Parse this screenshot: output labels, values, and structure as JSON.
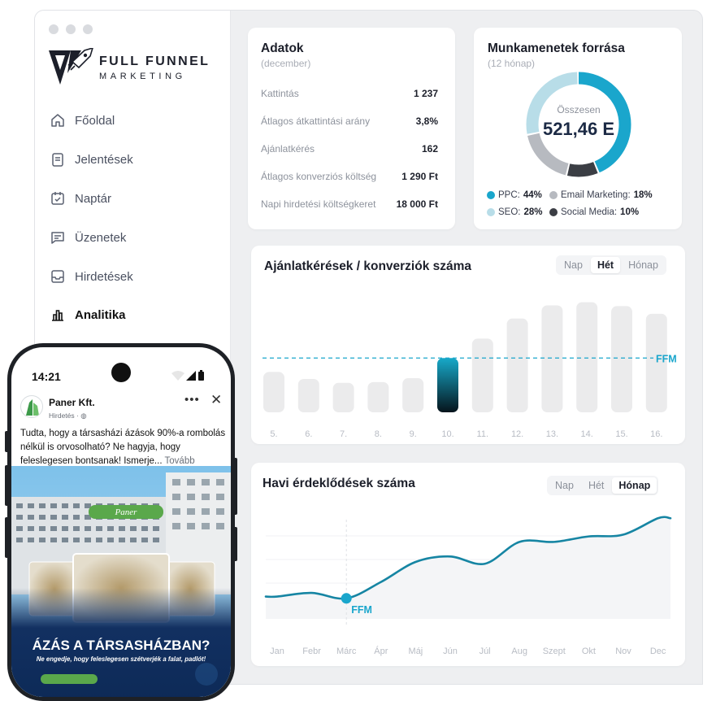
{
  "brand": {
    "line1": "FULL FUNNEL",
    "line2": "MARKETING"
  },
  "nav": [
    {
      "label": "Főoldal",
      "icon": "home-icon"
    },
    {
      "label": "Jelentések",
      "icon": "clipboard-icon"
    },
    {
      "label": "Naptár",
      "icon": "calendar-icon"
    },
    {
      "label": "Üzenetek",
      "icon": "message-icon"
    },
    {
      "label": "Hirdetések",
      "icon": "inbox-icon"
    },
    {
      "label": "Analitika",
      "icon": "bar-chart-icon",
      "active": true
    }
  ],
  "stats": {
    "title": "Adatok",
    "period": "(december)",
    "rows": [
      {
        "label": "Kattintás",
        "value": "1 237"
      },
      {
        "label": "Átlagos átkattintási arány",
        "value": "3,8%"
      },
      {
        "label": "Ajánlatkérés",
        "value": "162"
      },
      {
        "label": "Átlagos konverziós költség",
        "value": "1 290 Ft"
      },
      {
        "label": "Napi hirdetési költségkeret",
        "value": "18 000 Ft"
      }
    ]
  },
  "sessions": {
    "title": "Munkamenetek forrása",
    "period": "(12 hónap)",
    "center_label": "Összesen",
    "center_value": "521,46 E",
    "legend": [
      {
        "name": "PPC:",
        "value": "44%",
        "color": "#1aa6cc"
      },
      {
        "name": "Email Marketing:",
        "value": "18%",
        "color": "#b7bac0"
      },
      {
        "name": "SEO:",
        "value": "28%",
        "color": "#b8dde8"
      },
      {
        "name": "Social Media:",
        "value": "10%",
        "color": "#3b3e44"
      }
    ]
  },
  "conversions": {
    "title": "Ajánlatkérések / konverziók száma",
    "tabs": [
      "Nap",
      "Hét",
      "Hónap"
    ],
    "active_tab": "Hét",
    "ref_label": "FFM",
    "colors": {
      "bar": "#ebebec",
      "highlight_top": "#17a9c9",
      "highlight_bottom": "#06141c",
      "ref": "#1aa6cc"
    }
  },
  "interest": {
    "title": "Havi érdeklődések száma",
    "tabs": [
      "Nap",
      "Hét",
      "Hónap"
    ],
    "active_tab": "Hónap",
    "marker_label": "FFM",
    "colors": {
      "line": "#1685a3",
      "marker": "#1aa6cc"
    }
  },
  "chart_data": [
    {
      "type": "bar",
      "categories": [
        "5.",
        "6.",
        "7.",
        "8.",
        "9.",
        "10.",
        "11.",
        "12.",
        "13.",
        "14.",
        "15.",
        "16."
      ],
      "values": [
        52,
        43,
        38,
        39,
        44,
        70,
        95,
        121,
        138,
        142,
        137,
        127
      ],
      "highlight_index": 5,
      "reference_line": 70,
      "ylim": [
        0,
        150
      ],
      "title": "Ajánlatkérések / konverziók száma",
      "xlabel": "",
      "ylabel": "",
      "grid": false
    },
    {
      "type": "line",
      "x": [
        "Jan",
        "Febr",
        "Márc",
        "Ápr",
        "Máj",
        "Jún",
        "Júl",
        "Aug",
        "Szept",
        "Okt",
        "Nov",
        "Dec"
      ],
      "values": [
        12,
        16,
        10,
        28,
        50,
        56,
        48,
        72,
        72,
        78,
        80,
        98
      ],
      "marker_index": 2,
      "ylim": [
        0,
        100
      ],
      "title": "Havi érdeklődések száma",
      "xlabel": "",
      "ylabel": "",
      "grid": true
    }
  ],
  "phone": {
    "time": "14:21",
    "page_name": "Paner Kft.",
    "meta": "Hirdetés",
    "text": "Tudta, hogy a társasházi ázások 90%-a rombolás nélkül is orvosolható? Ne hagyja, hogy feleslegesen bontsanak! Ismerje...",
    "more": "Tovább",
    "ad_logo": "Paner",
    "headline": "ÁZÁS A TÁRSASHÁZBAN?",
    "subline": "Ne engedje, hogy feleslegesen szétverjék a falat, padlót!"
  }
}
